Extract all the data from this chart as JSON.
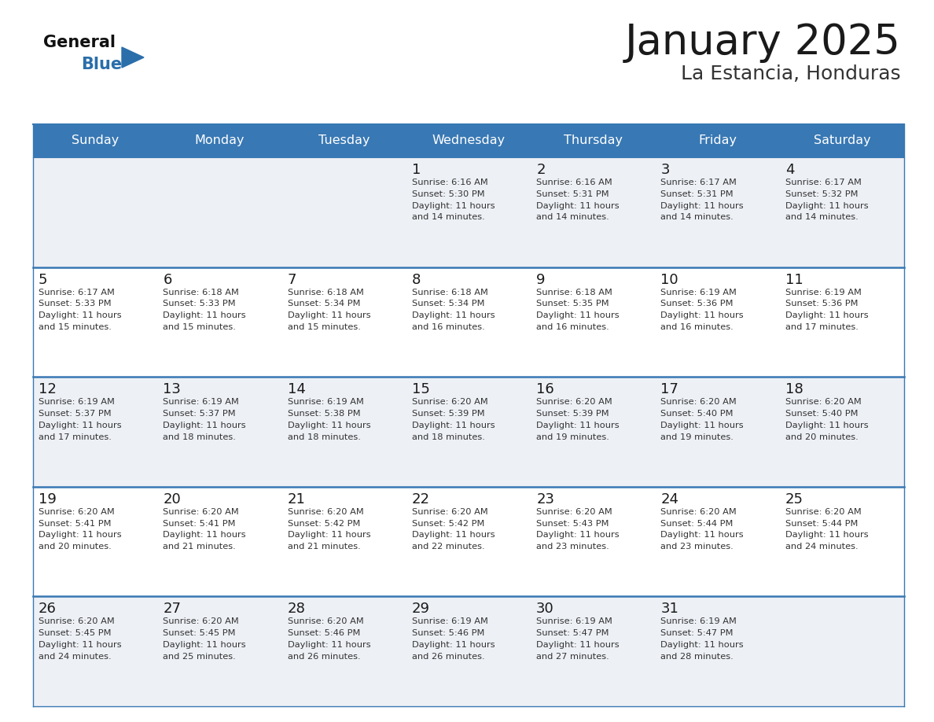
{
  "title": "January 2025",
  "subtitle": "La Estancia, Honduras",
  "header_bg_color": "#3878b4",
  "header_text_color": "#ffffff",
  "day_names": [
    "Sunday",
    "Monday",
    "Tuesday",
    "Wednesday",
    "Thursday",
    "Friday",
    "Saturday"
  ],
  "title_color": "#1a1a1a",
  "subtitle_color": "#333333",
  "cell_bg_white": "#ffffff",
  "cell_bg_gray": "#edf0f5",
  "day_num_color": "#1a1a1a",
  "info_color": "#333333",
  "grid_color": "#3878b4",
  "separator_color": "#3878b4",
  "logo_general_color": "#111111",
  "logo_blue_color": "#2a6eaa",
  "weeks": [
    [
      {
        "day": null,
        "info": null
      },
      {
        "day": null,
        "info": null
      },
      {
        "day": null,
        "info": null
      },
      {
        "day": 1,
        "info": "Sunrise: 6:16 AM\nSunset: 5:30 PM\nDaylight: 11 hours\nand 14 minutes."
      },
      {
        "day": 2,
        "info": "Sunrise: 6:16 AM\nSunset: 5:31 PM\nDaylight: 11 hours\nand 14 minutes."
      },
      {
        "day": 3,
        "info": "Sunrise: 6:17 AM\nSunset: 5:31 PM\nDaylight: 11 hours\nand 14 minutes."
      },
      {
        "day": 4,
        "info": "Sunrise: 6:17 AM\nSunset: 5:32 PM\nDaylight: 11 hours\nand 14 minutes."
      }
    ],
    [
      {
        "day": 5,
        "info": "Sunrise: 6:17 AM\nSunset: 5:33 PM\nDaylight: 11 hours\nand 15 minutes."
      },
      {
        "day": 6,
        "info": "Sunrise: 6:18 AM\nSunset: 5:33 PM\nDaylight: 11 hours\nand 15 minutes."
      },
      {
        "day": 7,
        "info": "Sunrise: 6:18 AM\nSunset: 5:34 PM\nDaylight: 11 hours\nand 15 minutes."
      },
      {
        "day": 8,
        "info": "Sunrise: 6:18 AM\nSunset: 5:34 PM\nDaylight: 11 hours\nand 16 minutes."
      },
      {
        "day": 9,
        "info": "Sunrise: 6:18 AM\nSunset: 5:35 PM\nDaylight: 11 hours\nand 16 minutes."
      },
      {
        "day": 10,
        "info": "Sunrise: 6:19 AM\nSunset: 5:36 PM\nDaylight: 11 hours\nand 16 minutes."
      },
      {
        "day": 11,
        "info": "Sunrise: 6:19 AM\nSunset: 5:36 PM\nDaylight: 11 hours\nand 17 minutes."
      }
    ],
    [
      {
        "day": 12,
        "info": "Sunrise: 6:19 AM\nSunset: 5:37 PM\nDaylight: 11 hours\nand 17 minutes."
      },
      {
        "day": 13,
        "info": "Sunrise: 6:19 AM\nSunset: 5:37 PM\nDaylight: 11 hours\nand 18 minutes."
      },
      {
        "day": 14,
        "info": "Sunrise: 6:19 AM\nSunset: 5:38 PM\nDaylight: 11 hours\nand 18 minutes."
      },
      {
        "day": 15,
        "info": "Sunrise: 6:20 AM\nSunset: 5:39 PM\nDaylight: 11 hours\nand 18 minutes."
      },
      {
        "day": 16,
        "info": "Sunrise: 6:20 AM\nSunset: 5:39 PM\nDaylight: 11 hours\nand 19 minutes."
      },
      {
        "day": 17,
        "info": "Sunrise: 6:20 AM\nSunset: 5:40 PM\nDaylight: 11 hours\nand 19 minutes."
      },
      {
        "day": 18,
        "info": "Sunrise: 6:20 AM\nSunset: 5:40 PM\nDaylight: 11 hours\nand 20 minutes."
      }
    ],
    [
      {
        "day": 19,
        "info": "Sunrise: 6:20 AM\nSunset: 5:41 PM\nDaylight: 11 hours\nand 20 minutes."
      },
      {
        "day": 20,
        "info": "Sunrise: 6:20 AM\nSunset: 5:41 PM\nDaylight: 11 hours\nand 21 minutes."
      },
      {
        "day": 21,
        "info": "Sunrise: 6:20 AM\nSunset: 5:42 PM\nDaylight: 11 hours\nand 21 minutes."
      },
      {
        "day": 22,
        "info": "Sunrise: 6:20 AM\nSunset: 5:42 PM\nDaylight: 11 hours\nand 22 minutes."
      },
      {
        "day": 23,
        "info": "Sunrise: 6:20 AM\nSunset: 5:43 PM\nDaylight: 11 hours\nand 23 minutes."
      },
      {
        "day": 24,
        "info": "Sunrise: 6:20 AM\nSunset: 5:44 PM\nDaylight: 11 hours\nand 23 minutes."
      },
      {
        "day": 25,
        "info": "Sunrise: 6:20 AM\nSunset: 5:44 PM\nDaylight: 11 hours\nand 24 minutes."
      }
    ],
    [
      {
        "day": 26,
        "info": "Sunrise: 6:20 AM\nSunset: 5:45 PM\nDaylight: 11 hours\nand 24 minutes."
      },
      {
        "day": 27,
        "info": "Sunrise: 6:20 AM\nSunset: 5:45 PM\nDaylight: 11 hours\nand 25 minutes."
      },
      {
        "day": 28,
        "info": "Sunrise: 6:20 AM\nSunset: 5:46 PM\nDaylight: 11 hours\nand 26 minutes."
      },
      {
        "day": 29,
        "info": "Sunrise: 6:19 AM\nSunset: 5:46 PM\nDaylight: 11 hours\nand 26 minutes."
      },
      {
        "day": 30,
        "info": "Sunrise: 6:19 AM\nSunset: 5:47 PM\nDaylight: 11 hours\nand 27 minutes."
      },
      {
        "day": 31,
        "info": "Sunrise: 6:19 AM\nSunset: 5:47 PM\nDaylight: 11 hours\nand 28 minutes."
      },
      {
        "day": null,
        "info": null
      }
    ]
  ],
  "row_bg_colors": [
    "#edf0f5",
    "#ffffff",
    "#edf0f5",
    "#ffffff",
    "#edf0f5"
  ]
}
